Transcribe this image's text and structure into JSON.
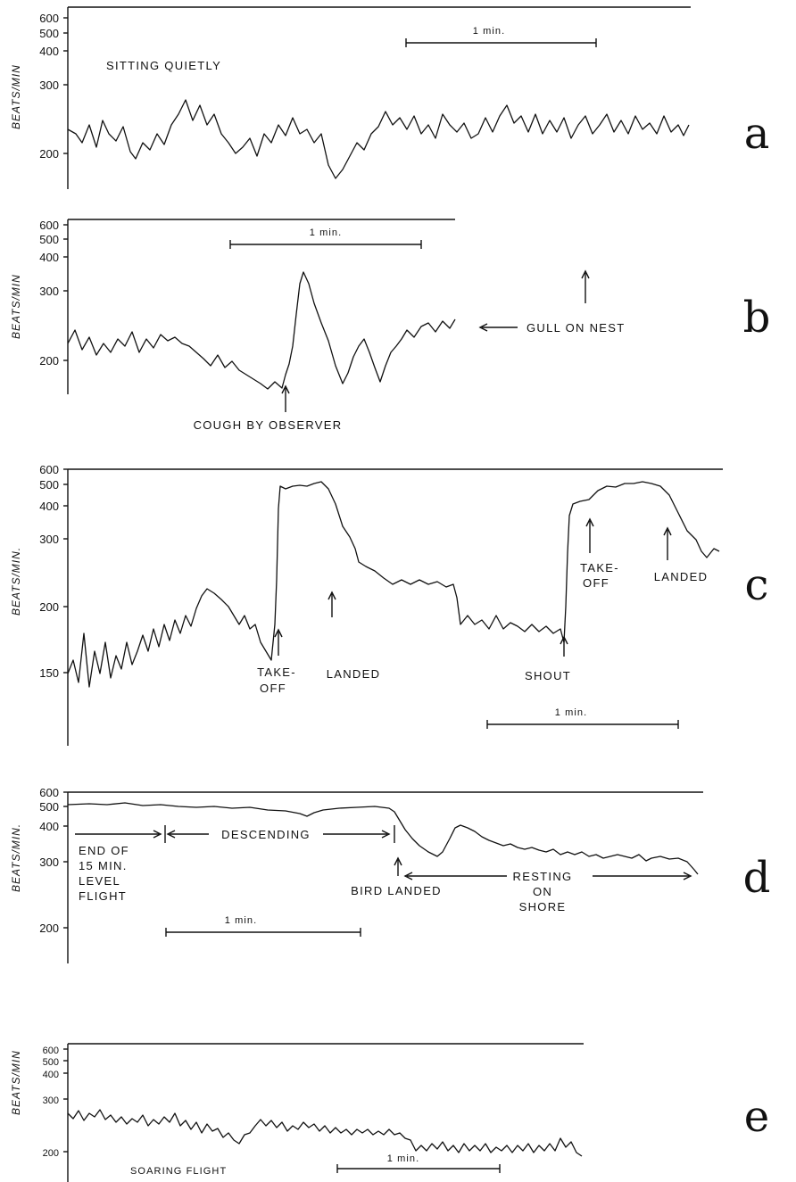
{
  "y_axis_label": "BEATS/MIN",
  "y_axis_label_c": "BEATS/MIN.",
  "y_axis_label_d": "BEATS/MIN.",
  "scale_bar_label": "1 min.",
  "panels": [
    {
      "letter": "a",
      "ticks": [
        "600",
        "500",
        "400",
        "300",
        "200"
      ],
      "annotations": [
        "SITTING QUIETLY"
      ]
    },
    {
      "letter": "b",
      "ticks": [
        "600",
        "500",
        "400",
        "300",
        "200"
      ],
      "annotations": [
        "GULL ON NEST",
        "COUGH BY OBSERVER"
      ]
    },
    {
      "letter": "c",
      "ticks": [
        "600",
        "500",
        "400",
        "300",
        "200",
        "150"
      ],
      "annotations": [
        "TAKE-",
        "OFF",
        "LANDED",
        "SHOUT",
        "TAKE-",
        "OFF",
        "LANDED"
      ]
    },
    {
      "letter": "d",
      "ticks": [
        "600",
        "500",
        "400",
        "300",
        "200"
      ],
      "annotations": [
        "END OF",
        "15 MIN.",
        "LEVEL",
        "FLIGHT",
        "DESCENDING",
        "BIRD LANDED",
        "RESTING",
        "ON",
        "SHORE"
      ]
    },
    {
      "letter": "e",
      "ticks": [
        "600",
        "500",
        "400",
        "300",
        "200"
      ],
      "annotations": [
        "SOARING FLIGHT"
      ]
    }
  ],
  "chart_data": [
    {
      "type": "line",
      "panel": "a",
      "ylabel": "BEATS/MIN",
      "yscale": "log",
      "ylim": [
        170,
        650
      ],
      "xlabel": "",
      "x_unit": "min",
      "x": [
        0,
        0.1,
        0.2,
        0.3,
        0.4,
        0.5,
        0.6,
        0.7,
        0.8,
        0.9,
        1.0,
        1.1,
        1.2,
        1.3,
        1.4,
        1.5,
        1.6,
        1.7,
        1.8,
        1.9,
        2.0,
        2.1,
        2.2,
        2.3,
        2.4,
        2.5,
        2.6,
        2.7,
        2.8,
        2.9,
        3.0,
        3.1
      ],
      "values": [
        225,
        220,
        235,
        215,
        240,
        205,
        215,
        230,
        250,
        235,
        245,
        225,
        215,
        195,
        210,
        180,
        205,
        240,
        235,
        230,
        220,
        240,
        225,
        235,
        250,
        225,
        235,
        240,
        225,
        230,
        225,
        235
      ],
      "scale_bar": "1 min."
    },
    {
      "type": "line",
      "panel": "b",
      "ylabel": "BEATS/MIN",
      "yscale": "log",
      "ylim": [
        165,
        650
      ],
      "xlabel": "",
      "x_unit": "min",
      "x": [
        0,
        0.1,
        0.2,
        0.3,
        0.4,
        0.5,
        0.6,
        0.7,
        0.8,
        0.9,
        1.0,
        1.05,
        1.1,
        1.2,
        1.3,
        1.4,
        1.5,
        1.6,
        1.7,
        1.8,
        1.9,
        2.0
      ],
      "values": [
        200,
        205,
        195,
        215,
        210,
        220,
        225,
        210,
        195,
        188,
        182,
        185,
        200,
        340,
        260,
        185,
        210,
        185,
        210,
        220,
        225,
        230
      ],
      "scale_bar": "1 min."
    },
    {
      "type": "line",
      "panel": "c",
      "ylabel": "BEATS/MIN.",
      "yscale": "log",
      "ylim": [
        120,
        620
      ],
      "xlabel": "",
      "x_unit": "min",
      "x": [
        0,
        0.1,
        0.2,
        0.3,
        0.4,
        0.5,
        0.6,
        0.7,
        0.8,
        0.9,
        1.0,
        1.05,
        1.1,
        1.2,
        1.3,
        1.4,
        1.5,
        1.6,
        1.7,
        1.8,
        1.9,
        2.0,
        2.1,
        2.2,
        2.3,
        2.4,
        2.5,
        2.55,
        2.6,
        2.7,
        2.8,
        2.9,
        3.0,
        3.1,
        3.2
      ],
      "values": [
        155,
        150,
        160,
        170,
        175,
        180,
        190,
        215,
        210,
        185,
        170,
        175,
        480,
        500,
        520,
        450,
        300,
        250,
        235,
        225,
        220,
        225,
        190,
        185,
        185,
        180,
        180,
        185,
        420,
        480,
        500,
        510,
        500,
        350,
        270
      ],
      "scale_bar": "1 min."
    },
    {
      "type": "line",
      "panel": "d",
      "ylabel": "BEATS/MIN.",
      "yscale": "log",
      "ylim": [
        170,
        620
      ],
      "xlabel": "",
      "x_unit": "min",
      "x": [
        0,
        0.2,
        0.4,
        0.6,
        0.8,
        1.0,
        1.2,
        1.4,
        1.6,
        1.8,
        2.0,
        2.2,
        2.4,
        2.6,
        2.8,
        3.0
      ],
      "values": [
        510,
        510,
        505,
        500,
        480,
        470,
        475,
        470,
        330,
        410,
        380,
        350,
        330,
        320,
        310,
        270
      ],
      "scale_bar": "1 min."
    },
    {
      "type": "line",
      "panel": "e",
      "ylabel": "BEATS/MIN",
      "yscale": "log",
      "ylim": [
        170,
        650
      ],
      "xlabel": "",
      "x_unit": "min",
      "x": [
        0,
        0.2,
        0.4,
        0.6,
        0.8,
        1.0,
        1.2,
        1.4,
        1.6,
        1.8,
        2.0,
        2.2,
        2.4,
        2.6,
        2.8,
        3.0
      ],
      "values": [
        270,
        265,
        260,
        255,
        262,
        240,
        258,
        250,
        245,
        243,
        240,
        225,
        225,
        226,
        228,
        218
      ],
      "scale_bar": "1 min."
    }
  ]
}
